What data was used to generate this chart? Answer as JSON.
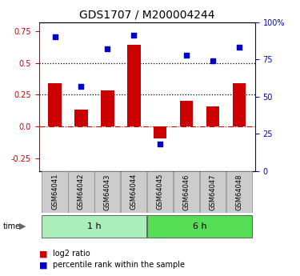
{
  "title": "GDS1707 / M200004244",
  "categories": [
    "GSM64041",
    "GSM64042",
    "GSM64043",
    "GSM64044",
    "GSM64045",
    "GSM64046",
    "GSM64047",
    "GSM64048"
  ],
  "log2_ratio": [
    0.34,
    0.13,
    0.285,
    0.64,
    -0.09,
    0.2,
    0.155,
    0.34
  ],
  "percentile_rank": [
    90,
    57,
    82,
    91,
    18,
    78,
    74,
    83
  ],
  "bar_color": "#CC0000",
  "dot_color": "#0000CC",
  "ylim_left": [
    -0.35,
    0.82
  ],
  "ylim_right": [
    0,
    100
  ],
  "yticks_left": [
    -0.25,
    0.0,
    0.25,
    0.5,
    0.75
  ],
  "yticks_right": [
    0,
    25,
    50,
    75,
    100
  ],
  "hlines": [
    0.25,
    0.5
  ],
  "zero_line_color": "#CC0000",
  "background_color": "#ffffff",
  "group1_label": "1 h",
  "group2_label": "6 h",
  "group1_indices": [
    0,
    1,
    2,
    3
  ],
  "group2_indices": [
    4,
    5,
    6,
    7
  ],
  "group_bg1": "#aaeebb",
  "group_bg2": "#55dd55",
  "time_label": "time",
  "legend1": "log2 ratio",
  "legend2": "percentile rank within the sample",
  "bar_width": 0.5,
  "figsize": [
    3.75,
    3.45
  ],
  "dpi": 100
}
